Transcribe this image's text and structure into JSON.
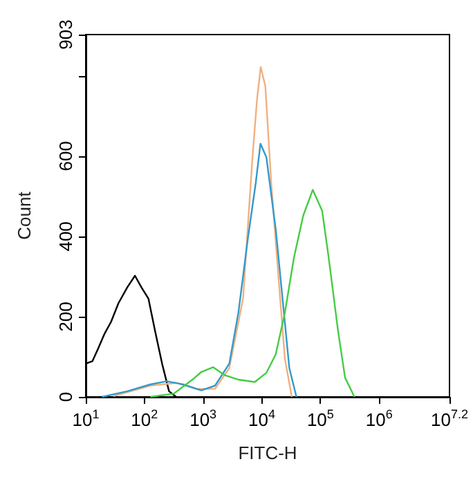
{
  "chart_data": {
    "type": "line",
    "xlabel": "FITC-H",
    "ylabel": "Count",
    "log": "x",
    "grid": false,
    "xlim": [
      10,
      15848932
    ],
    "ylim": [
      0,
      903
    ],
    "xticks": [
      {
        "value": 10,
        "label": "10$^{1}$"
      },
      {
        "value": 100,
        "label": "10$^{2}$"
      },
      {
        "value": 1000,
        "label": "10$^{3}$"
      },
      {
        "value": 10000,
        "label": "10$^{4}$"
      },
      {
        "value": 100000,
        "label": "10$^{5}$"
      },
      {
        "value": 1000000,
        "label": "10$^{6}$"
      },
      {
        "value": 15848932,
        "label": "10$^{7.2}$"
      }
    ],
    "yticks": [
      0,
      200,
      400,
      600,
      {
        "value": 800,
        "label": null
      },
      903
    ],
    "series": [
      {
        "color": "#000000",
        "x": [
          10,
          13,
          16,
          21,
          27,
          36,
          51,
          69,
          89,
          117,
          152,
          200,
          263,
          347
        ],
        "values": [
          83,
          89,
          118,
          158,
          187,
          233,
          273,
          302,
          273,
          245,
          164,
          83,
          14,
          0
        ]
      },
      {
        "color": "#f0b080",
        "x": [
          30,
          126,
          350,
          760,
          1600,
          2800,
          4800,
          6900,
          8300,
          9600,
          11500,
          14500,
          19200,
          24800,
          32500
        ],
        "values": [
          2,
          28,
          35,
          20,
          20,
          72,
          245,
          591,
          741,
          822,
          775,
          533,
          302,
          95,
          0
        ]
      },
      {
        "color": "#3399cc",
        "x": [
          19,
          51,
          126,
          240,
          457,
          933,
          1600,
          2800,
          4000,
          5800,
          7900,
          9500,
          12000,
          17300,
          22600,
          29500,
          39000
        ],
        "values": [
          0,
          14,
          31,
          39,
          31,
          16,
          28,
          83,
          210,
          395,
          533,
          631,
          597,
          418,
          245,
          72,
          0
        ]
      },
      {
        "color": "#44cc44",
        "x": [
          126,
          316,
          660,
          930,
          1480,
          2350,
          4000,
          7600,
          12000,
          17300,
          24800,
          35500,
          51000,
          74000,
          107000,
          138000,
          200000,
          263000,
          380000
        ],
        "values": [
          0,
          8,
          43,
          62,
          74,
          54,
          43,
          37,
          60,
          106,
          210,
          348,
          452,
          516,
          464,
          348,
          164,
          48,
          0
        ]
      }
    ]
  }
}
